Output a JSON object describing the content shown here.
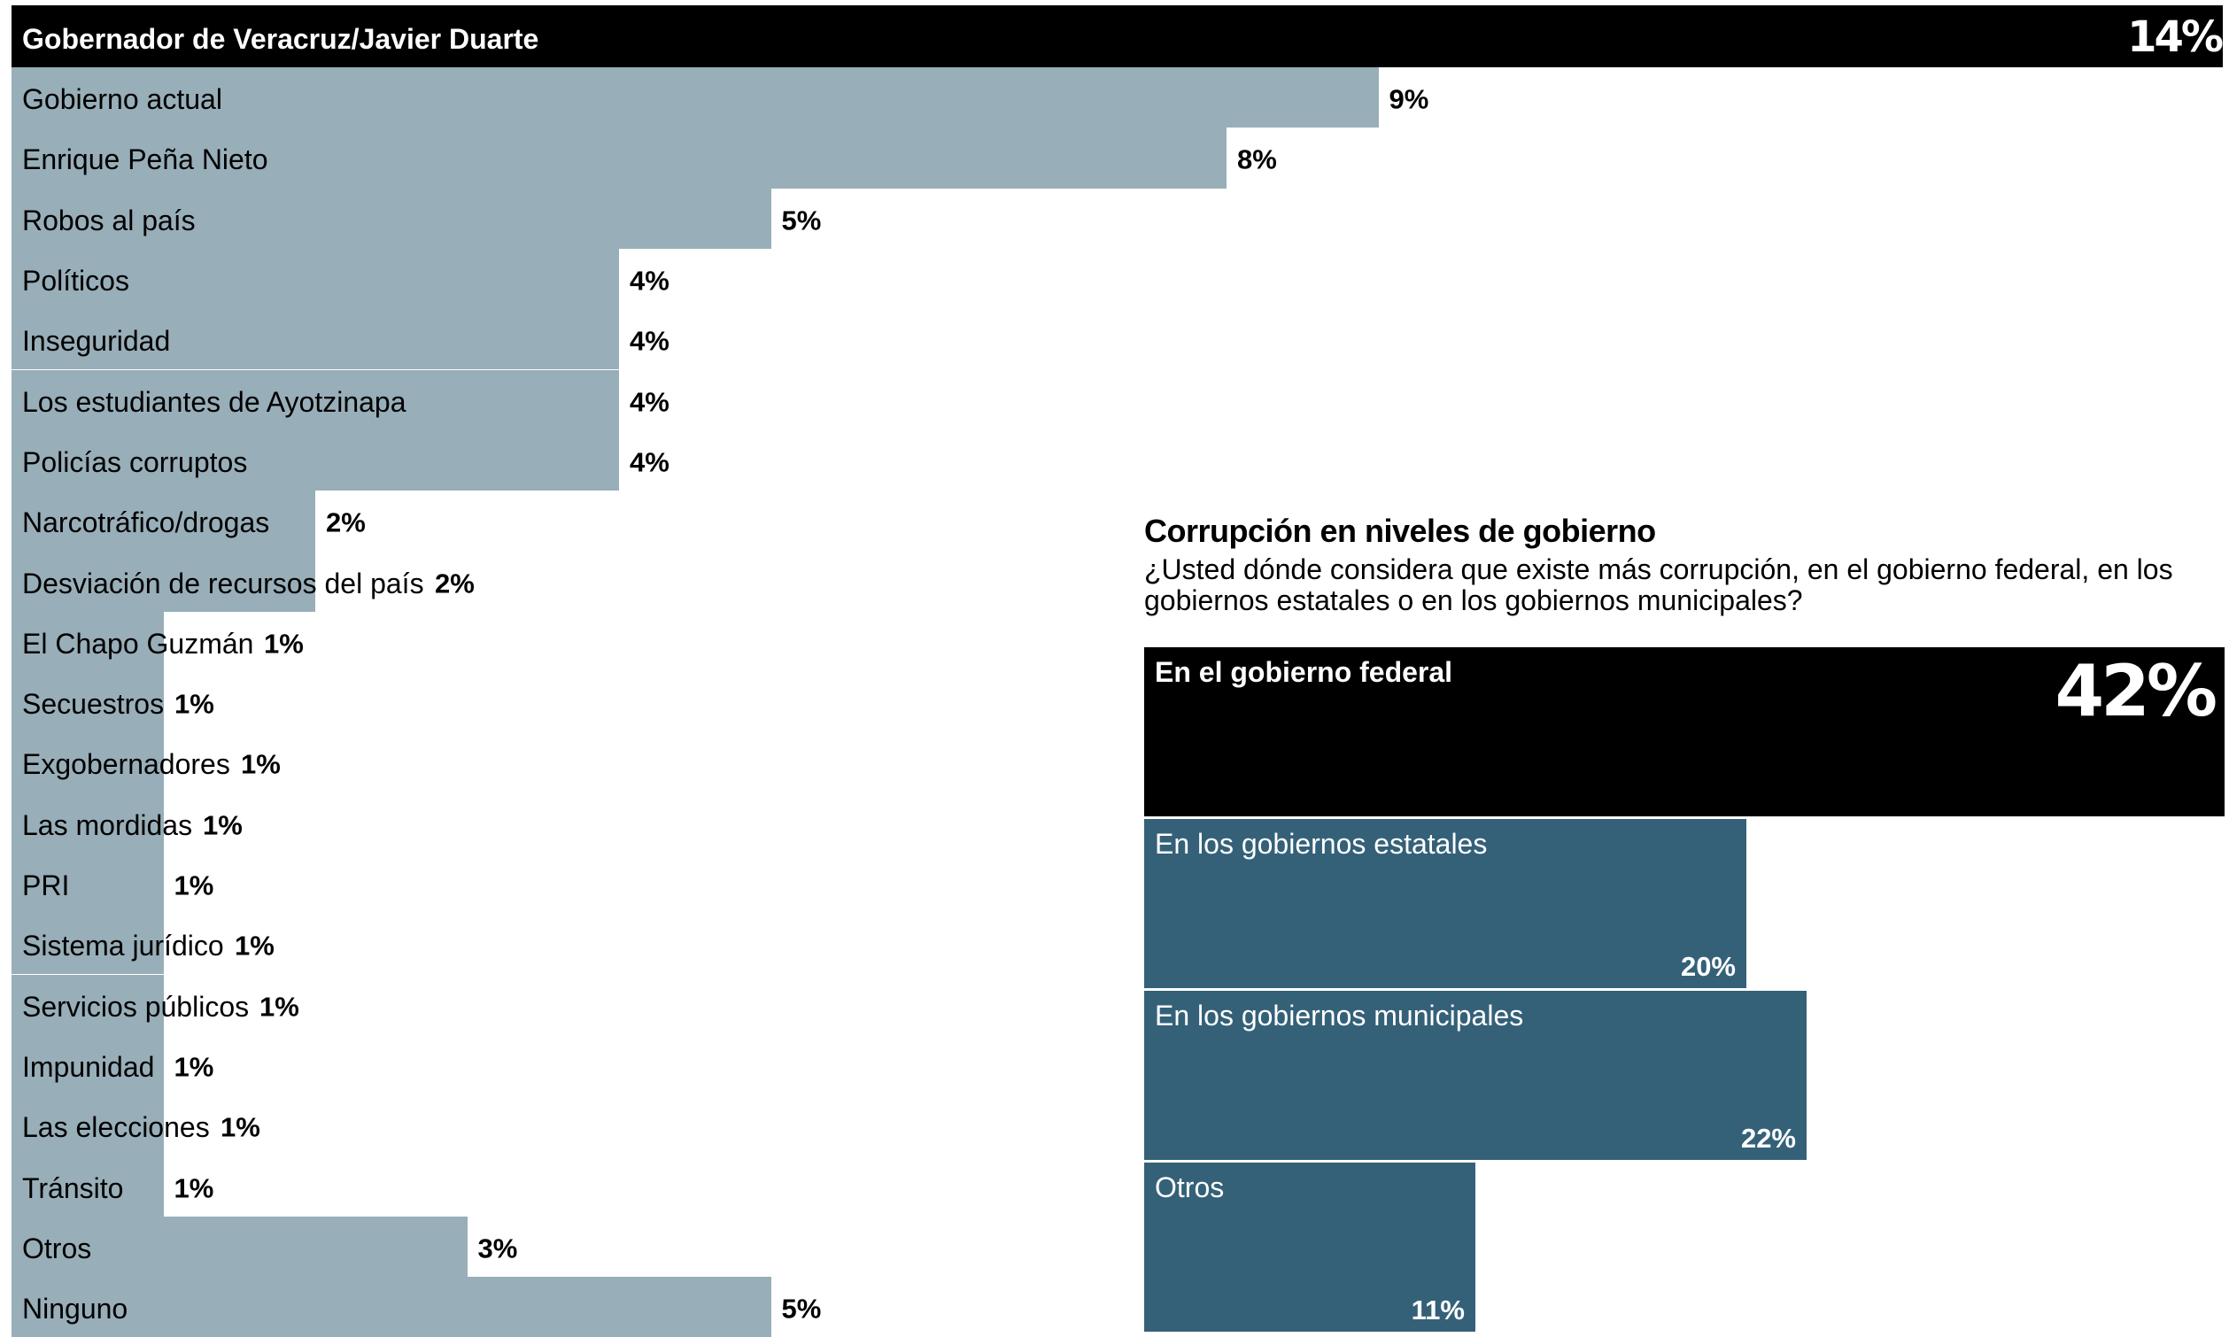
{
  "colors": {
    "highlight": "#000000",
    "left_bar": "#98aeb8",
    "right_bar": "#346178",
    "text": "#000000",
    "text_on_dark": "#ffffff"
  },
  "chart_data": [
    {
      "type": "bar",
      "orientation": "horizontal",
      "categories": [
        "Gobernador de Veracruz/Javier Duarte",
        "Gobierno actual",
        "Enrique Peña Nieto",
        "Robos al país",
        "Políticos",
        "Inseguridad",
        "Los estudiantes de Ayotzinapa",
        "Policías corruptos",
        "Narcotráfico/drogas",
        "Desviación de recursos del país",
        "El Chapo Guzmán",
        "Secuestros",
        "Exgobernadores",
        "Las mordidas",
        "PRI",
        "Sistema jurídico",
        "Servicios públicos",
        "Impunidad",
        "Las elecciones",
        "Tránsito",
        "Otros",
        "Ninguno"
      ],
      "values": [
        14,
        9,
        8,
        5,
        4,
        4,
        4,
        4,
        2,
        2,
        1,
        1,
        1,
        1,
        1,
        1,
        1,
        1,
        1,
        1,
        3,
        5
      ],
      "value_labels": [
        "14%",
        "9%",
        "8%",
        "5%",
        "4%",
        "4%",
        "4%",
        "4%",
        "2%",
        "2%",
        "1%",
        "1%",
        "1%",
        "1%",
        "1%",
        "1%",
        "1%",
        "1%",
        "1%",
        "1%",
        "3%",
        "5%"
      ],
      "unit": "%",
      "highlighted_category": "Gobernador de Veracruz/Javier Duarte",
      "xlim": [
        0,
        14
      ],
      "grid": false,
      "legend": "none"
    },
    {
      "type": "bar",
      "orientation": "horizontal",
      "title": "Corrupción en niveles de gobierno",
      "subtitle": "¿Usted dónde considera que existe más corrupción, en el gobierno federal, en los gobiernos estatales o en los gobiernos municipales?",
      "categories": [
        "En el gobierno federal",
        "En los gobiernos estatales",
        "En los gobiernos municipales",
        "Otros"
      ],
      "values": [
        42,
        20,
        22,
        11
      ],
      "value_labels": [
        "42%",
        "20%",
        "22%",
        "11%"
      ],
      "unit": "%",
      "highlighted_category": "En el gobierno federal",
      "xlim": [
        0,
        42
      ],
      "grid": false,
      "legend": "none"
    }
  ]
}
